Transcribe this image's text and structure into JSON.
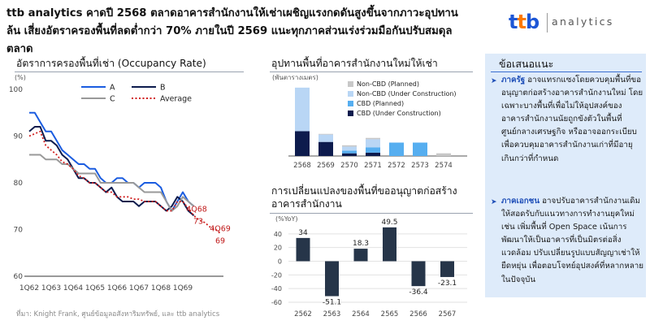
{
  "header": {
    "headline": "ttb analytics คาดปี 2568 ตลาดอาคารสำนักงานให้เช่าเผชิญแรงกดดันสูงขึ้นจากภาวะอุปทานล้น เสี่ยงอัตราครองพื้นที่ลดต่ำกว่า 70% ภายในปี 2569 แนะทุกภาคส่วนเร่งร่วมมือกันปรับสมดุลตลาด",
    "logo_mark": [
      "t",
      "t",
      "b"
    ],
    "logo_text": "analytics",
    "logo_colors": {
      "blue": "#1e57d6",
      "orange": "#ff7a00"
    }
  },
  "source": "ที่มา: Knight Frank, ศูนย์ข้อมูลอสังหาริมทรัพย์, และ ttb analytics",
  "recommendations": {
    "title": "ข้อเสนอแนะ",
    "items": [
      {
        "highlight": "ภาครัฐ",
        "text": " อาจแทรกแซงโดยควบคุมพื้นที่ขออนุญาตก่อสร้างอาคารสำนักงานใหม่ โดยเฉพาะบางพื้นที่เพื่อไม่ให้อุปสงค์ของอาคารสำนักงานนัยถูกขังตัวในพื้นที่ศูนย์กลางเศรษฐกิจ หรืออาจออกระเบียบเพื่อควบคุมอาคารสำนักงานเก่าที่มีอายุเกินกว่าที่กำหนด"
      },
      {
        "highlight": "ภาคเอกชน",
        "text": " อาจปรับอาคารสำนักงานเดิมให้สอดรับกับแนวทางการทำงานยุคใหม่ เช่น เพิ่มพื้นที่ Open Space เน้นการพัฒนาให้เป็นอาคารที่เป็นมิตรต่อสิ่งแวดล้อม ปรับเปลี่ยนรูปแบบสัญญาเช่าให้ยืดหยุ่น เพื่อตอบโจทย์อุปสงค์ที่หลากหลายในปัจจุบัน"
      }
    ]
  },
  "chart_data": [
    {
      "type": "line",
      "title": "อัตราการครองพื้นที่เช่า (Occupancy Rate)",
      "ylabel": "(%)",
      "ylim": [
        60,
        100
      ],
      "yticks": [
        60,
        70,
        80,
        90,
        100
      ],
      "xticks": [
        "1Q62",
        "1Q63",
        "1Q64",
        "1Q65",
        "1Q66",
        "1Q67",
        "1Q68",
        "1Q69"
      ],
      "grid": false,
      "legend_position": "top-right",
      "series": [
        {
          "name": "A",
          "color": "#1a5ce0",
          "style": "solid",
          "points": [
            [
              0,
              95
            ],
            [
              1,
              95
            ],
            [
              2,
              93
            ],
            [
              3,
              91
            ],
            [
              4,
              91
            ],
            [
              5,
              89
            ],
            [
              6,
              87
            ],
            [
              7,
              86
            ],
            [
              8,
              85
            ],
            [
              9,
              84
            ],
            [
              10,
              84
            ],
            [
              11,
              83
            ],
            [
              12,
              83
            ],
            [
              13,
              81
            ],
            [
              14,
              80
            ],
            [
              15,
              80
            ],
            [
              16,
              81
            ],
            [
              17,
              81
            ],
            [
              18,
              80
            ],
            [
              19,
              80
            ],
            [
              20,
              79
            ],
            [
              21,
              80
            ],
            [
              22,
              80
            ],
            [
              23,
              80
            ],
            [
              24,
              79
            ],
            [
              25,
              76
            ],
            [
              26,
              74
            ],
            [
              27,
              76
            ],
            [
              28,
              78
            ],
            [
              29,
              76
            ],
            [
              30,
              75
            ]
          ]
        },
        {
          "name": "B",
          "color": "#0d1b4d",
          "style": "solid",
          "points": [
            [
              0,
              91
            ],
            [
              1,
              92
            ],
            [
              2,
              92
            ],
            [
              3,
              89
            ],
            [
              4,
              89
            ],
            [
              5,
              88
            ],
            [
              6,
              86
            ],
            [
              7,
              85
            ],
            [
              8,
              83
            ],
            [
              9,
              81
            ],
            [
              10,
              81
            ],
            [
              11,
              80
            ],
            [
              12,
              80
            ],
            [
              13,
              79
            ],
            [
              14,
              78
            ],
            [
              15,
              79
            ],
            [
              16,
              77
            ],
            [
              17,
              76
            ],
            [
              18,
              76
            ],
            [
              19,
              76
            ],
            [
              20,
              75
            ],
            [
              21,
              76
            ],
            [
              22,
              76
            ],
            [
              23,
              76
            ],
            [
              24,
              75
            ],
            [
              25,
              74
            ],
            [
              26,
              75
            ],
            [
              27,
              77
            ],
            [
              28,
              76
            ],
            [
              29,
              74
            ],
            [
              30,
              73
            ]
          ]
        },
        {
          "name": "C",
          "color": "#999999",
          "style": "solid",
          "points": [
            [
              0,
              86
            ],
            [
              1,
              86
            ],
            [
              2,
              86
            ],
            [
              3,
              85
            ],
            [
              4,
              85
            ],
            [
              5,
              85
            ],
            [
              6,
              84
            ],
            [
              7,
              84
            ],
            [
              8,
              83
            ],
            [
              9,
              82
            ],
            [
              10,
              82
            ],
            [
              11,
              82
            ],
            [
              12,
              82
            ],
            [
              13,
              80
            ],
            [
              14,
              80
            ],
            [
              15,
              80
            ],
            [
              16,
              80
            ],
            [
              17,
              80
            ],
            [
              18,
              80
            ],
            [
              19,
              80
            ],
            [
              20,
              79
            ],
            [
              21,
              78
            ],
            [
              22,
              78
            ],
            [
              23,
              78
            ],
            [
              24,
              78
            ],
            [
              25,
              76
            ],
            [
              26,
              74
            ],
            [
              27,
              75
            ],
            [
              28,
              77
            ],
            [
              29,
              76
            ],
            [
              30,
              75
            ]
          ]
        },
        {
          "name": "Average",
          "color": "#d02020",
          "style": "dotted",
          "points": [
            [
              0,
              90
            ],
            [
              1,
              90.5
            ],
            [
              2,
              91
            ],
            [
              3,
              88
            ],
            [
              4,
              87
            ],
            [
              5,
              86
            ],
            [
              6,
              84.5
            ],
            [
              7,
              84
            ],
            [
              8,
              83
            ],
            [
              9,
              81.5
            ],
            [
              10,
              81
            ],
            [
              11,
              80
            ],
            [
              12,
              80
            ],
            [
              13,
              79
            ],
            [
              14,
              78
            ],
            [
              15,
              78
            ],
            [
              16,
              77
            ],
            [
              17,
              77
            ],
            [
              18,
              77
            ],
            [
              19,
              76.5
            ],
            [
              20,
              76.5
            ],
            [
              21,
              76
            ],
            [
              22,
              76
            ],
            [
              23,
              76
            ],
            [
              24,
              75
            ],
            [
              25,
              74
            ],
            [
              26,
              74
            ],
            [
              27,
              76
            ],
            [
              28,
              76
            ],
            [
              29,
              74.5
            ],
            [
              30,
              73
            ],
            [
              31,
              72
            ],
            [
              32,
              71.5
            ],
            [
              33,
              70.5
            ],
            [
              34,
              70
            ],
            [
              35,
              69
            ]
          ]
        }
      ],
      "annotations": [
        {
          "label": "4Q68",
          "value": "73",
          "x": 30,
          "y": 73
        },
        {
          "label": "4Q69",
          "value": "69",
          "x": 35,
          "y": 69
        }
      ]
    },
    {
      "type": "bar",
      "stacked": true,
      "title": "อุปทานพื้นที่อาคารสำนักงานใหม่ให้เช่า",
      "ylabel": "(พันตารางเมตร)",
      "categories": [
        "2568",
        "2569",
        "2570",
        "2571",
        "2572",
        "2573",
        "2574"
      ],
      "legend_position": "top-right",
      "series": [
        {
          "name": "CBD (Under Construction)",
          "color": "#0d1b4d",
          "values": [
            185,
            105,
            20,
            25,
            0,
            0,
            0
          ]
        },
        {
          "name": "CBD (Planned)",
          "color": "#56aef0",
          "values": [
            0,
            0,
            20,
            40,
            100,
            100,
            0
          ]
        },
        {
          "name": "Non-CBD (Under Construction)",
          "color": "#b9d6f5",
          "values": [
            325,
            55,
            30,
            60,
            0,
            0,
            0
          ]
        },
        {
          "name": "Non-CBD (Planned)",
          "color": "#c8c8c8",
          "values": [
            0,
            5,
            10,
            10,
            0,
            0,
            20
          ]
        }
      ]
    },
    {
      "type": "bar",
      "title": "การเปลี่ยนแปลงของพื้นที่ขออนุญาตก่อสร้างอาคารสำนักงาน",
      "ylabel": "(%YoY)",
      "ylim": [
        -60,
        60
      ],
      "yticks": [
        -60,
        -40,
        -20,
        0,
        20,
        40,
        60
      ],
      "categories": [
        "2562",
        "2563",
        "2564",
        "2565",
        "2566",
        "2567"
      ],
      "values": [
        34,
        -51.1,
        18.3,
        49.5,
        -36.4,
        -23.1
      ],
      "value_labels": [
        "34",
        "-51.1",
        "18.3",
        "49.5",
        "-36.4",
        "-23.1"
      ],
      "color": "#263549",
      "grid": true
    }
  ]
}
